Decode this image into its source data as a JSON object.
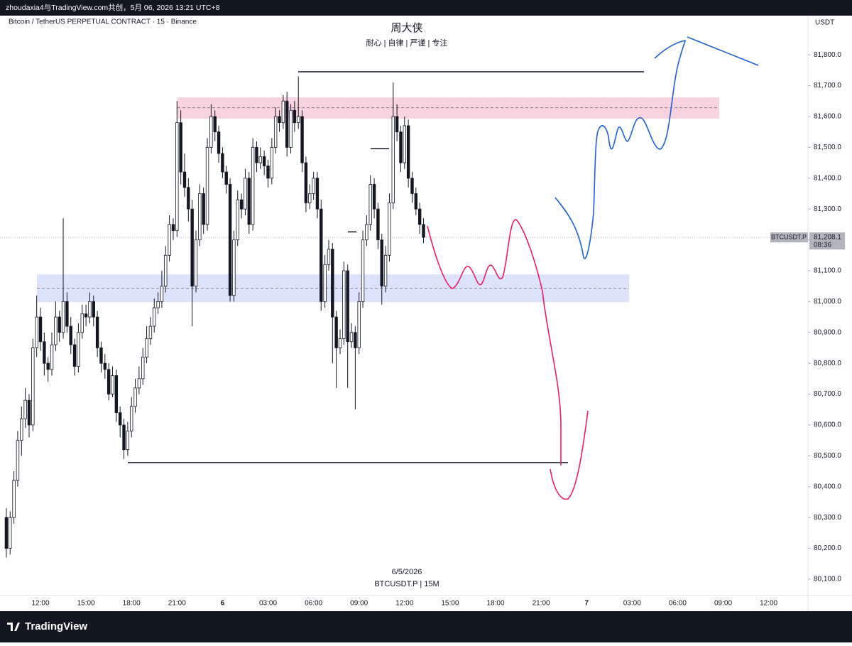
{
  "header": {
    "caption": "zhoudaxia4与TradingView.com共创，5月 06, 2026 13:21 UTC+8",
    "logo": "TradingView"
  },
  "chart_data": {
    "type": "candlestick",
    "symbol_line": "Bitcoin / TetherUS PERPETUAL CONTRACT · 15 · Binance",
    "title": "周大侠",
    "subtitle": "耐心 | 自律 | 严谨 | 专注",
    "currency": "USDT",
    "annotations": [
      "6/5/2026",
      "BTCUSDT.P | 15M"
    ],
    "up_color": "#ffffff",
    "down_color": "#131722",
    "ylim": [
      80047,
      81927
    ],
    "yticks": [
      {
        "value": 80100,
        "label": "80,100.0"
      },
      {
        "value": 80200,
        "label": "80,200.0"
      },
      {
        "value": 80300,
        "label": "80,300.0"
      },
      {
        "value": 80400,
        "label": "80,400.0"
      },
      {
        "value": 80500,
        "label": "80,500.0"
      },
      {
        "value": 80600,
        "label": "80,600.0"
      },
      {
        "value": 80700,
        "label": "80,700.0"
      },
      {
        "value": 80800,
        "label": "80,800.0"
      },
      {
        "value": 80900,
        "label": "80,900.0"
      },
      {
        "value": 81000,
        "label": "81,000.0"
      },
      {
        "value": 81100,
        "label": "81,100.0"
      },
      {
        "value": 81200,
        "label": "81,200.0"
      },
      {
        "value": 81300,
        "label": "81,300.0"
      },
      {
        "value": 81400,
        "label": "81,400.0"
      },
      {
        "value": 81500,
        "label": "81,500.0"
      },
      {
        "value": 81600,
        "label": "81,600.0"
      },
      {
        "value": 81700,
        "label": "81,700.0"
      },
      {
        "value": 81800,
        "label": "81,800.0"
      }
    ],
    "xticks": [
      "12:00",
      "15:00",
      "18:00",
      "21:00",
      "6",
      "03:00",
      "06:00",
      "09:00",
      "12:00",
      "15:00",
      "18:00",
      "21:00",
      "7",
      "03:00",
      "06:00",
      "09:00",
      "12:00"
    ],
    "ohlc": [
      [
        80300,
        80330,
        80170,
        80200
      ],
      [
        80200,
        80320,
        80180,
        80300
      ],
      [
        80300,
        80450,
        80280,
        80420
      ],
      [
        80420,
        80580,
        80400,
        80550
      ],
      [
        80550,
        80660,
        80500,
        80620
      ],
      [
        80620,
        80720,
        80590,
        80680
      ],
      [
        80680,
        80700,
        80560,
        80600
      ],
      [
        80600,
        80880,
        80580,
        80850
      ],
      [
        80850,
        81020,
        80820,
        80950
      ],
      [
        80950,
        80980,
        80840,
        80870
      ],
      [
        80870,
        80900,
        80760,
        80800
      ],
      [
        80800,
        80820,
        80740,
        80780
      ],
      [
        80780,
        80900,
        80760,
        80860
      ],
      [
        80860,
        81000,
        80840,
        80950
      ],
      [
        80950,
        80970,
        80870,
        80900
      ],
      [
        80900,
        81270,
        80880,
        81000
      ],
      [
        81000,
        81030,
        80900,
        80920
      ],
      [
        80920,
        80950,
        80830,
        80860
      ],
      [
        80860,
        80880,
        80760,
        80790
      ],
      [
        80790,
        80930,
        80770,
        80900
      ],
      [
        80900,
        80990,
        80880,
        80960
      ],
      [
        80960,
        80990,
        80920,
        80950
      ],
      [
        80950,
        81030,
        80930,
        81000
      ],
      [
        81000,
        81020,
        80920,
        80950
      ],
      [
        80950,
        80970,
        80820,
        80850
      ],
      [
        80850,
        80870,
        80770,
        80800
      ],
      [
        80800,
        80830,
        80750,
        80780
      ],
      [
        80780,
        80800,
        80680,
        80700
      ],
      [
        80700,
        80790,
        80690,
        80760
      ],
      [
        80760,
        80780,
        80610,
        80640
      ],
      [
        80640,
        80660,
        80560,
        80600
      ],
      [
        80600,
        80620,
        80490,
        80520
      ],
      [
        80520,
        80610,
        80500,
        80580
      ],
      [
        80580,
        80690,
        80560,
        80660
      ],
      [
        80660,
        80750,
        80640,
        80720
      ],
      [
        80720,
        80790,
        80700,
        80750
      ],
      [
        80750,
        80850,
        80730,
        80820
      ],
      [
        80820,
        80920,
        80800,
        80880
      ],
      [
        80880,
        80950,
        80860,
        80920
      ],
      [
        80920,
        81010,
        80900,
        80980
      ],
      [
        80980,
        81030,
        80960,
        81000
      ],
      [
        81000,
        81100,
        80980,
        81050
      ],
      [
        81050,
        81180,
        81030,
        81150
      ],
      [
        81150,
        81280,
        81130,
        81250
      ],
      [
        81250,
        81270,
        81200,
        81230
      ],
      [
        81230,
        81650,
        81210,
        81580
      ],
      [
        81580,
        81620,
        81380,
        81420
      ],
      [
        81420,
        81480,
        81340,
        81370
      ],
      [
        81370,
        81400,
        81260,
        81300
      ],
      [
        81300,
        81330,
        80920,
        81050
      ],
      [
        81050,
        81230,
        81030,
        81200
      ],
      [
        81200,
        81380,
        81180,
        81350
      ],
      [
        81350,
        81370,
        81220,
        81250
      ],
      [
        81250,
        81530,
        81230,
        81500
      ],
      [
        81500,
        81640,
        81480,
        81600
      ],
      [
        81600,
        81620,
        81520,
        81550
      ],
      [
        81550,
        81570,
        81450,
        81480
      ],
      [
        81480,
        81500,
        81400,
        81420
      ],
      [
        81420,
        81440,
        81350,
        81380
      ],
      [
        81380,
        81400,
        81000,
        81020
      ],
      [
        81020,
        81230,
        81000,
        81200
      ],
      [
        81200,
        81360,
        81180,
        81330
      ],
      [
        81330,
        81350,
        81270,
        81300
      ],
      [
        81300,
        81430,
        81280,
        81400
      ],
      [
        81400,
        81420,
        81220,
        81250
      ],
      [
        81250,
        81530,
        81230,
        81500
      ],
      [
        81500,
        81520,
        81420,
        81450
      ],
      [
        81450,
        81500,
        81430,
        81470
      ],
      [
        81470,
        81490,
        81410,
        81440
      ],
      [
        81440,
        81460,
        81370,
        81400
      ],
      [
        81400,
        81530,
        81380,
        81500
      ],
      [
        81500,
        81630,
        81480,
        81600
      ],
      [
        81600,
        81620,
        81550,
        81580
      ],
      [
        81580,
        81670,
        81560,
        81650
      ],
      [
        81650,
        81680,
        81470,
        81500
      ],
      [
        81500,
        81640,
        81480,
        81620
      ],
      [
        81620,
        81650,
        81550,
        81580
      ],
      [
        81580,
        81730,
        81560,
        81600
      ],
      [
        81600,
        81620,
        81420,
        81450
      ],
      [
        81450,
        81470,
        81290,
        81320
      ],
      [
        81320,
        81380,
        81300,
        81350
      ],
      [
        81350,
        81420,
        81330,
        81400
      ],
      [
        81400,
        81420,
        81270,
        81300
      ],
      [
        81300,
        81330,
        80970,
        81000
      ],
      [
        81000,
        81150,
        80980,
        81120
      ],
      [
        81120,
        81200,
        81100,
        81170
      ],
      [
        81170,
        81190,
        80800,
        80950
      ],
      [
        80950,
        80970,
        80720,
        80850
      ],
      [
        80850,
        80910,
        80830,
        80880
      ],
      [
        80880,
        81130,
        80860,
        81100
      ],
      [
        81100,
        81120,
        80720,
        80870
      ],
      [
        80870,
        80930,
        80850,
        80900
      ],
      [
        80900,
        80920,
        80650,
        80850
      ],
      [
        80850,
        81030,
        80830,
        81000
      ],
      [
        81000,
        81230,
        80980,
        81200
      ],
      [
        81200,
        81280,
        81180,
        81250
      ],
      [
        81250,
        81410,
        81230,
        81380
      ],
      [
        81380,
        81400,
        81270,
        81300
      ],
      [
        81300,
        81320,
        81170,
        81200
      ],
      [
        81200,
        81220,
        80990,
        81050
      ],
      [
        81050,
        81180,
        81030,
        81150
      ],
      [
        81150,
        81350,
        81130,
        81320
      ],
      [
        81320,
        81710,
        81300,
        81600
      ],
      [
        81600,
        81640,
        81520,
        81550
      ],
      [
        81550,
        81570,
        81420,
        81450
      ],
      [
        81450,
        81600,
        81430,
        81570
      ],
      [
        81570,
        81590,
        81370,
        81400
      ],
      [
        81400,
        81420,
        81320,
        81350
      ],
      [
        81350,
        81370,
        81280,
        81300
      ],
      [
        81300,
        81320,
        81220,
        81250
      ],
      [
        81250,
        81270,
        81190,
        81208.1
      ]
    ],
    "zones": [
      {
        "top": 81662,
        "bottom": 81593,
        "mid": 81628,
        "color": "#f8c8d8"
      },
      {
        "top": 81088,
        "bottom": 80998,
        "mid": 81043,
        "color": "#d3dcfa"
      }
    ],
    "levels": [
      81745,
      80478,
      81496,
      81226
    ],
    "level_color": "#131722",
    "last_price": {
      "symbol": "BTCUSDT.P",
      "value": 81208.1,
      "value_label": "81,208.1",
      "countdown": "08:36",
      "color": "#b2b5be"
    }
  }
}
